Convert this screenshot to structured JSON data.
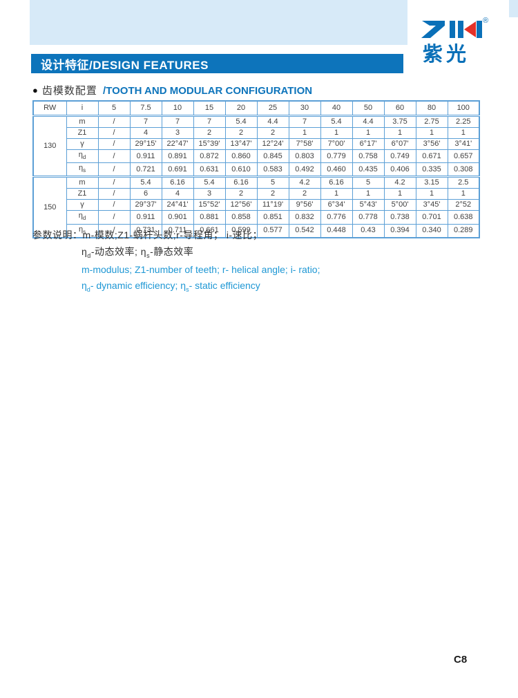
{
  "header": {
    "banner_title": "设计特征/DESIGN FEATURES",
    "logo_mark": "ZIK",
    "logo_registered": "®",
    "logo_subtext": "紫光"
  },
  "section": {
    "bullet": "●",
    "title_zh": "齿模数配置",
    "title_en": "/TOOTH AND MODULAR CONFIGURATION"
  },
  "table": {
    "col_headers": [
      "RW",
      "i",
      "5",
      "7.5",
      "10",
      "15",
      "20",
      "25",
      "30",
      "40",
      "50",
      "60",
      "80",
      "100"
    ],
    "groups": [
      {
        "rw": "130",
        "rows": [
          {
            "label": "m",
            "sub": "",
            "values": [
              "/",
              "7",
              "7",
              "7",
              "5.4",
              "4.4",
              "7",
              "5.4",
              "4.4",
              "3.75",
              "2.75",
              "2.25"
            ]
          },
          {
            "label": "Z1",
            "sub": "",
            "values": [
              "/",
              "4",
              "3",
              "2",
              "2",
              "2",
              "1",
              "1",
              "1",
              "1",
              "1",
              "1"
            ]
          },
          {
            "label": "γ",
            "sub": "",
            "values": [
              "/",
              "29°15'",
              "22°47'",
              "15°39'",
              "13°47'",
              "12°24'",
              "7°58'",
              "7°00'",
              "6°17'",
              "6°07'",
              "3°56'",
              "3°41'"
            ]
          },
          {
            "label": "η",
            "sub": "d",
            "values": [
              "/",
              "0.911",
              "0.891",
              "0.872",
              "0.860",
              "0.845",
              "0.803",
              "0.779",
              "0.758",
              "0.749",
              "0.671",
              "0.657"
            ]
          },
          {
            "label": "η",
            "sub": "s",
            "values": [
              "/",
              "0.721",
              "0.691",
              "0.631",
              "0.610",
              "0.583",
              "0.492",
              "0.460",
              "0.435",
              "0.406",
              "0.335",
              "0.308"
            ]
          }
        ]
      },
      {
        "rw": "150",
        "rows": [
          {
            "label": "m",
            "sub": "",
            "values": [
              "/",
              "5.4",
              "6.16",
              "5.4",
              "6.16",
              "5",
              "4.2",
              "6.16",
              "5",
              "4.2",
              "3.15",
              "2.5"
            ]
          },
          {
            "label": "Z1",
            "sub": "",
            "values": [
              "/",
              "6",
              "4",
              "3",
              "2",
              "2",
              "2",
              "1",
              "1",
              "1",
              "1",
              "1"
            ]
          },
          {
            "label": "γ",
            "sub": "",
            "values": [
              "/",
              "29°37'",
              "24°41'",
              "15°52'",
              "12°56'",
              "11°19'",
              "9°56'",
              "6°34'",
              "5°43'",
              "5°00'",
              "3°45'",
              "2°52"
            ]
          },
          {
            "label": "η",
            "sub": "d",
            "values": [
              "/",
              "0.911",
              "0.901",
              "0.881",
              "0.858",
              "0.851",
              "0.832",
              "0.776",
              "0.778",
              "0.738",
              "0.701",
              "0.638"
            ]
          },
          {
            "label": "η",
            "sub": "s",
            "values": [
              "/",
              "0.731",
              "0.711",
              "0.661",
              "0.599",
              "0.577",
              "0.542",
              "0.448",
              "0.43",
              "0.394",
              "0.340",
              "0.289"
            ]
          }
        ]
      }
    ]
  },
  "notes": {
    "line1": "参数说明：m-模数;Z1-蜗杆头数;r-导程角； i-速比；",
    "line2": {
      "eta1": "η",
      "sub1": "d",
      "mid": "-动态效率; ",
      "eta2": "η",
      "sub2": "s",
      "end": "-静态效率"
    },
    "line3": "m-modulus; Z1-number of teeth; r- helical angle; i- ratio;",
    "line4": {
      "eta1": "η",
      "sub1": "d",
      "mid": "- dynamic efficiency; ",
      "eta2": "η",
      "sub2": "s",
      "end": "- static efficiency"
    }
  },
  "footer": {
    "page_number": "C8"
  },
  "colors": {
    "banner_blue": "#0d74bb",
    "light_blue_band": "#d7eaf8",
    "table_border_blue": "#5b9fd6",
    "body_text": "#3f3f3f",
    "note_blue": "#1e97d4",
    "logo_blue": "#0a70b8",
    "logo_red": "#e53128"
  }
}
